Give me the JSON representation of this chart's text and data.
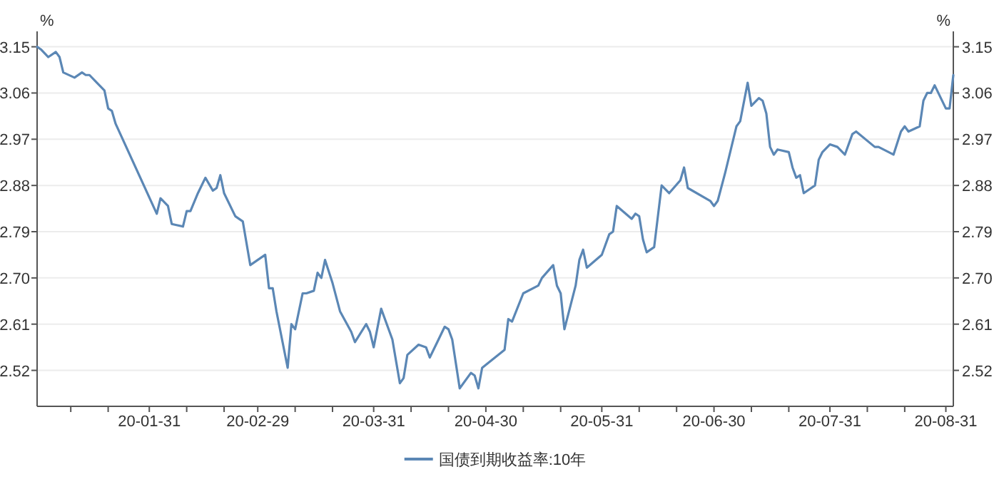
{
  "chart_data": {
    "type": "line",
    "ylabel": "%",
    "y2label": "%",
    "grid": "y",
    "legend": "bottom",
    "x": [
      "--01-01",
      "--01-02",
      "--01-04",
      "--01-06",
      "--01-07",
      "--01-08",
      "--01-11",
      "--01-13",
      "--01-14",
      "--01-15",
      "--01-17",
      "--01-19",
      "--01-20",
      "--01-21",
      "--01-22",
      "--02-02",
      "--02-03",
      "--02-05",
      "--02-06",
      "--02-09",
      "--02-10",
      "--02-11",
      "--02-13",
      "--02-15",
      "--02-17",
      "--02-18",
      "--02-19",
      "--02-20",
      "--02-23",
      "--02-25",
      "--02-27",
      "--03-02",
      "--03-03",
      "--03-04",
      "--03-05",
      "--03-08",
      "--03-09",
      "--03-10",
      "--03-12",
      "--03-13",
      "--03-15",
      "--03-16",
      "--03-17",
      "--03-18",
      "--03-20",
      "--03-22",
      "--03-25",
      "--03-26",
      "--03-29",
      "--03-30",
      "--03-31",
      "--04-02",
      "--04-05",
      "--04-07",
      "--04-08",
      "--04-09",
      "--04-12",
      "--04-14",
      "--04-15",
      "--04-17",
      "--04-19",
      "--04-20",
      "--04-21",
      "--04-23",
      "--04-26",
      "--04-27",
      "--04-28",
      "--04-29",
      "--05-05",
      "--05-06",
      "--05-07",
      "--05-10",
      "--05-14",
      "--05-15",
      "--05-18",
      "--05-19",
      "--05-20",
      "--05-21",
      "--05-24",
      "--05-25",
      "--05-26",
      "--05-27",
      "--05-31",
      "--06-02",
      "--06-03",
      "--06-04",
      "--06-08",
      "--06-09",
      "--06-10",
      "--06-11",
      "--06-12",
      "--06-14",
      "--06-16",
      "--06-18",
      "--06-21",
      "--06-22",
      "--06-23",
      "--06-29",
      "--06-30",
      "--07-01",
      "--07-03",
      "--07-06",
      "--07-07",
      "--07-09",
      "--07-10",
      "--07-12",
      "--07-13",
      "--07-14",
      "--07-15",
      "--07-16",
      "--07-17",
      "--07-20",
      "--07-21",
      "--07-22",
      "--07-23",
      "--07-24",
      "--07-27",
      "--07-28",
      "--07-29",
      "--07-31",
      "--08-02",
      "--08-04",
      "--08-06",
      "--08-07",
      "--08-12",
      "--08-13",
      "--08-17",
      "--08-19",
      "--08-20",
      "--08-21",
      "--08-24",
      "--08-25",
      "--08-26",
      "--08-27",
      "--08-28",
      "--08-31",
      "--09-01",
      "--09-02"
    ],
    "series": [
      {
        "name": "国债到期收益率:10年",
        "color": "#5b87b5",
        "values": [
          3.15,
          3.145,
          3.13,
          3.14,
          3.13,
          3.1,
          3.09,
          3.1,
          3.095,
          3.095,
          3.08,
          3.065,
          3.03,
          3.025,
          3.0,
          2.825,
          2.855,
          2.84,
          2.805,
          2.8,
          2.83,
          2.83,
          2.865,
          2.895,
          2.87,
          2.875,
          2.9,
          2.865,
          2.82,
          2.81,
          2.725,
          2.745,
          2.68,
          2.68,
          2.635,
          2.525,
          2.61,
          2.6,
          2.67,
          2.67,
          2.675,
          2.71,
          2.7,
          2.735,
          2.69,
          2.635,
          2.595,
          2.575,
          2.61,
          2.595,
          2.565,
          2.64,
          2.58,
          2.495,
          2.505,
          2.55,
          2.57,
          2.565,
          2.545,
          2.575,
          2.605,
          2.6,
          2.58,
          2.485,
          2.515,
          2.51,
          2.485,
          2.525,
          2.56,
          2.62,
          2.615,
          2.67,
          2.685,
          2.7,
          2.725,
          2.685,
          2.67,
          2.6,
          2.685,
          2.735,
          2.755,
          2.72,
          2.745,
          2.785,
          2.79,
          2.84,
          2.815,
          2.825,
          2.82,
          2.775,
          2.75,
          2.76,
          2.88,
          2.865,
          2.89,
          2.915,
          2.875,
          2.85,
          2.84,
          2.85,
          2.905,
          2.995,
          3.005,
          3.08,
          3.035,
          3.05,
          3.045,
          3.02,
          2.955,
          2.94,
          2.95,
          2.945,
          2.915,
          2.895,
          2.9,
          2.865,
          2.88,
          2.93,
          2.945,
          2.96,
          2.955,
          2.94,
          2.98,
          2.985,
          2.955,
          2.955,
          2.94,
          2.985,
          2.995,
          2.985,
          2.995,
          3.045,
          3.06,
          3.06,
          3.075,
          3.03,
          3.03,
          3.095
        ]
      }
    ],
    "xlim": [
      "--01-01",
      "--09-02"
    ],
    "xticks": [
      {
        "value": "--01-10",
        "label": null
      },
      {
        "value": "--01-20",
        "label": null
      },
      {
        "value": "--01-31",
        "label": "20-01-31"
      },
      {
        "value": "--02-10",
        "label": null
      },
      {
        "value": "--02-20",
        "label": null
      },
      {
        "value": "--02-29",
        "label": "20-02-29"
      },
      {
        "value": "--03-10",
        "label": null
      },
      {
        "value": "--03-20",
        "label": null
      },
      {
        "value": "--03-31",
        "label": "20-03-31"
      },
      {
        "value": "--04-10",
        "label": null
      },
      {
        "value": "--04-20",
        "label": null
      },
      {
        "value": "--04-30",
        "label": "20-04-30"
      },
      {
        "value": "--05-10",
        "label": null
      },
      {
        "value": "--05-20",
        "label": null
      },
      {
        "value": "--05-31",
        "label": "20-05-31"
      },
      {
        "value": "--06-10",
        "label": null
      },
      {
        "value": "--06-20",
        "label": null
      },
      {
        "value": "--06-30",
        "label": "20-06-30"
      },
      {
        "value": "--07-10",
        "label": null
      },
      {
        "value": "--07-20",
        "label": null
      },
      {
        "value": "--07-31",
        "label": "20-07-31"
      },
      {
        "value": "--08-10",
        "label": null
      },
      {
        "value": "--08-20",
        "label": null
      },
      {
        "value": "--08-31",
        "label": "20-08-31"
      }
    ],
    "ylim": [
      2.45,
      3.18
    ],
    "yticks": [
      {
        "value": 2.52,
        "label": "2.52"
      },
      {
        "value": 2.61,
        "label": "2.61"
      },
      {
        "value": 2.7,
        "label": "2.70"
      },
      {
        "value": 2.79,
        "label": "2.79"
      },
      {
        "value": 2.88,
        "label": "2.88"
      },
      {
        "value": 2.97,
        "label": "2.97"
      },
      {
        "value": 3.06,
        "label": "3.06"
      },
      {
        "value": 3.15,
        "label": "3.15"
      }
    ],
    "y2lim": [
      2.45,
      3.18
    ],
    "y2ticks": [
      {
        "value": 2.52,
        "label": "2.52"
      },
      {
        "value": 2.61,
        "label": "2.61"
      },
      {
        "value": 2.7,
        "label": "2.70"
      },
      {
        "value": 2.79,
        "label": "2.79"
      },
      {
        "value": 2.88,
        "label": "2.88"
      },
      {
        "value": 2.97,
        "label": "2.97"
      },
      {
        "value": 3.06,
        "label": "3.06"
      },
      {
        "value": 3.15,
        "label": "3.15"
      }
    ]
  }
}
